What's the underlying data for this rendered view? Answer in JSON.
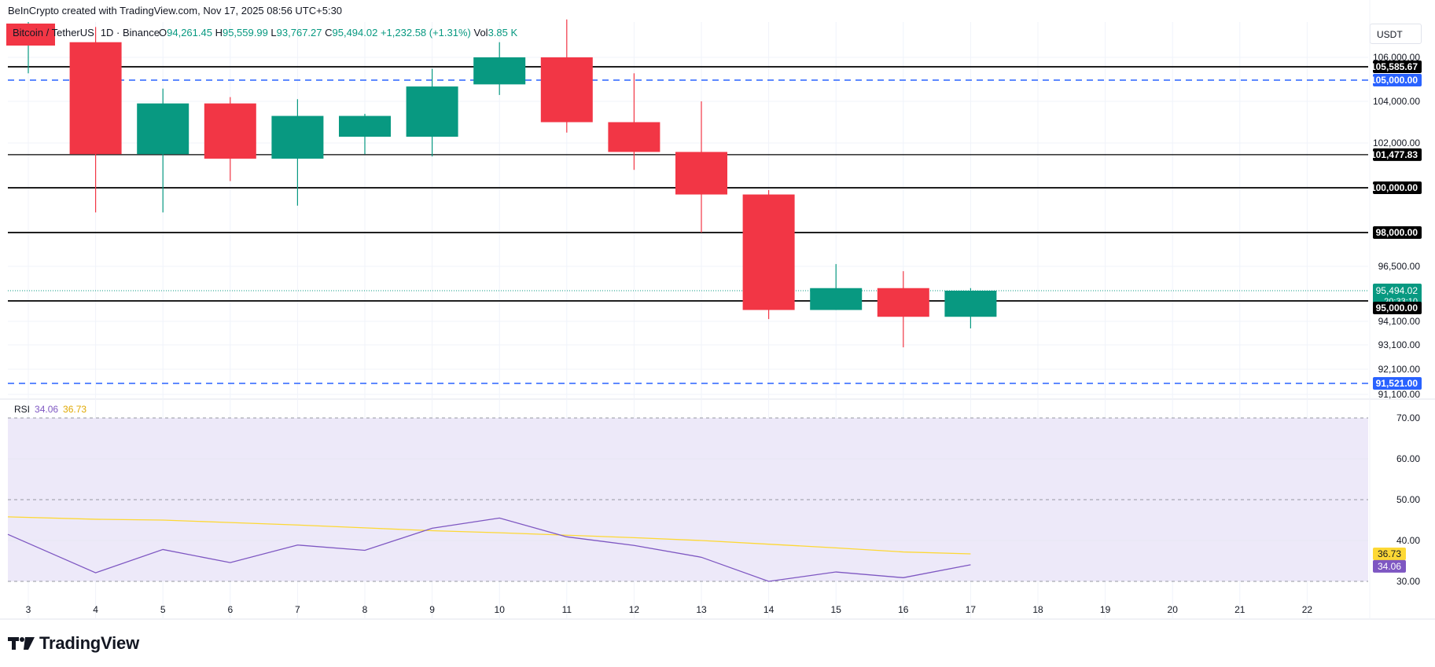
{
  "header": {
    "credit": "BeInCrypto created with TradingView.com, Nov 17, 2025 08:56 UTC+5:30",
    "symbol": "Bitcoin / TetherUS",
    "interval_exchange": "1D · Binance",
    "open_label": "O",
    "open": "94,261.45",
    "high_label": "H",
    "high": "95,559.99",
    "low_label": "L",
    "low": "93,767.27",
    "close_label": "C",
    "close": "95,494.02",
    "change": "+1,232.58 (+1.31%)",
    "vol_label": "Vol",
    "vol": "3.85 K",
    "currency": "USDT"
  },
  "logo": {
    "text": "TradingView",
    "icon": "tradingview-logo-icon"
  },
  "colors": {
    "up": "#089981",
    "down": "#f23645",
    "blue_level": "#2962ff",
    "rsi": "#7e57c2",
    "rsi_ma": "#fdd835",
    "rsi_band": "#ede9f9"
  },
  "chart_data": [
    {
      "type": "candlestick",
      "x_labels": [
        "3",
        "4",
        "5",
        "6",
        "7",
        "8",
        "9",
        "10",
        "11",
        "12",
        "13",
        "14",
        "15",
        "16",
        "17",
        "18",
        "19",
        "20",
        "21",
        "22"
      ],
      "candles": [
        {
          "x": "3",
          "open": 106700,
          "high": 107400,
          "low": 105300,
          "close": 106700
        },
        {
          "x": "4",
          "open": 106600,
          "high": 107200,
          "low": 98900,
          "close": 101500
        },
        {
          "x": "5",
          "open": 101500,
          "high": 104600,
          "low": 98900,
          "close": 103900
        },
        {
          "x": "6",
          "open": 103900,
          "high": 104200,
          "low": 100300,
          "close": 101300
        },
        {
          "x": "7",
          "open": 101300,
          "high": 104100,
          "low": 99200,
          "close": 103300
        },
        {
          "x": "8",
          "open": 102300,
          "high": 103400,
          "low": 101500,
          "close": 103300
        },
        {
          "x": "9",
          "open": 102300,
          "high": 105500,
          "low": 101400,
          "close": 104700
        },
        {
          "x": "10",
          "open": 104800,
          "high": 106600,
          "low": 104300,
          "close": 106000
        },
        {
          "x": "11",
          "open": 106000,
          "high": 107500,
          "low": 102500,
          "close": 103000
        },
        {
          "x": "12",
          "open": 103000,
          "high": 105300,
          "low": 100800,
          "close": 101600
        },
        {
          "x": "13",
          "open": 101600,
          "high": 104000,
          "low": 98000,
          "close": 99700
        },
        {
          "x": "14",
          "open": 99700,
          "high": 99900,
          "low": 94200,
          "close": 94600
        },
        {
          "x": "15",
          "open": 94600,
          "high": 96600,
          "low": 94600,
          "close": 95600
        },
        {
          "x": "16",
          "open": 95600,
          "high": 96300,
          "low": 93000,
          "close": 94300
        },
        {
          "x": "17",
          "open": 94300,
          "high": 95600,
          "low": 93800,
          "close": 95494
        }
      ],
      "y_ticks": [
        "106,000.00",
        "104,000.00",
        "102,000.00",
        "96,500.00",
        "94,100.00",
        "93,100.00",
        "92,100.00",
        "91,100.00"
      ],
      "levels": [
        {
          "value": 105585.67,
          "label": "105,585.67",
          "style": "solid-black"
        },
        {
          "value": 105000,
          "label": "105,000.00",
          "style": "dashed-blue"
        },
        {
          "value": 101477.83,
          "label": "101,477.83",
          "style": "solid-black"
        },
        {
          "value": 100000,
          "label": "100,000.00",
          "style": "solid-black"
        },
        {
          "value": 98000,
          "label": "98,000.00",
          "style": "solid-black"
        },
        {
          "value": 95000,
          "label": "95,000.00",
          "style": "solid-black"
        },
        {
          "value": 91521,
          "label": "91,521.00",
          "style": "dashed-blue"
        }
      ],
      "last_price": {
        "value": 95494.02,
        "label": "95,494.02",
        "countdown": "20:33:10"
      }
    },
    {
      "type": "line",
      "title": "RSI",
      "rsi_value_label": "34.06",
      "ma_value_label": "36.73",
      "x": [
        "3",
        "4",
        "5",
        "6",
        "7",
        "8",
        "9",
        "10",
        "11",
        "12",
        "13",
        "14",
        "15",
        "16",
        "17"
      ],
      "series": [
        {
          "name": "RSI",
          "values": [
            41.5,
            32.1,
            37.8,
            34.6,
            38.9,
            37.6,
            43.0,
            45.5,
            40.9,
            38.8,
            35.9,
            30.0,
            32.3,
            30.9,
            34.06
          ]
        },
        {
          "name": "RSI-based MA",
          "values": [
            45.8,
            45.2,
            45.0,
            44.4,
            43.8,
            43.1,
            42.4,
            41.9,
            41.3,
            40.7,
            40.0,
            39.1,
            38.2,
            37.2,
            36.73
          ]
        }
      ],
      "y_ticks": [
        "70.00",
        "60.00",
        "50.00",
        "40.00",
        "30.00"
      ],
      "band": [
        30,
        70
      ],
      "mid_line": 50
    }
  ]
}
